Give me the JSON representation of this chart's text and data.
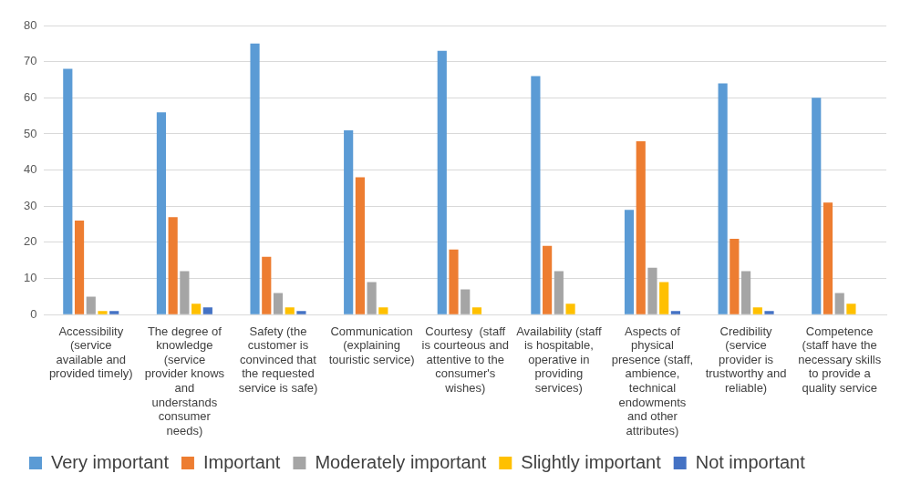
{
  "chart_data": {
    "type": "bar",
    "categories": [
      "Accessibility (service available and provided timely)",
      "The degree of knowledge (service provider knows and understands consumer needs)",
      "Safety (the customer is convinced that the requested service is safe)",
      "Communication (explaining touristic service)",
      "Courtesy  (staff is courteous and attentive to the consumer's wishes)",
      "Availability (staff is hospitable, operative in providing services)",
      "Aspects of physical presence (staff, ambience, technical endowments and other attributes)",
      "Credibility (service provider is trustworthy and reliable)",
      "Competence (staff have the necessary skills to provide a quality service"
    ],
    "series": [
      {
        "name": "Very important",
        "color": "#5b9bd5",
        "values": [
          68,
          56,
          75,
          51,
          73,
          66,
          29,
          64,
          60
        ]
      },
      {
        "name": "Important",
        "color": "#ed7d31",
        "values": [
          26,
          27,
          16,
          38,
          18,
          19,
          48,
          21,
          31
        ]
      },
      {
        "name": "Moderately important",
        "color": "#a5a5a5",
        "values": [
          5,
          12,
          6,
          9,
          7,
          12,
          13,
          12,
          6
        ]
      },
      {
        "name": "Slightly important",
        "color": "#ffc000",
        "values": [
          1,
          3,
          2,
          2,
          2,
          3,
          9,
          2,
          3
        ]
      },
      {
        "name": "Not important",
        "color": "#4472c4",
        "values": [
          1,
          2,
          1,
          0,
          0,
          0,
          1,
          1,
          0
        ]
      }
    ],
    "ylim": [
      0,
      80
    ],
    "yticks": [
      0,
      10,
      20,
      30,
      40,
      50,
      60,
      70,
      80
    ],
    "grid": "y",
    "legend": "bottom"
  }
}
